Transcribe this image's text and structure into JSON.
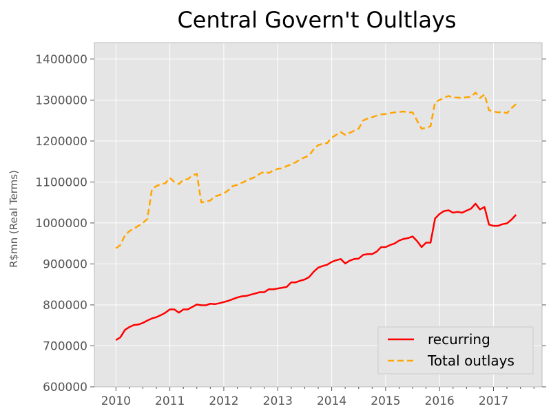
{
  "chart_data": {
    "type": "line",
    "title": "Central Govern't Oultlays",
    "xlabel": "",
    "ylabel": "R$mn (Real Terms)",
    "xlim": [
      2009.6,
      2017.9
    ],
    "ylim": [
      600000,
      1440000
    ],
    "x_ticks": [
      2010,
      2011,
      2012,
      2013,
      2014,
      2015,
      2016,
      2017
    ],
    "y_ticks": [
      600000,
      700000,
      800000,
      900000,
      1000000,
      1100000,
      1200000,
      1300000,
      1400000
    ],
    "grid": true,
    "legend_position": "lower-right",
    "colors": {
      "background": "#e5e5e5",
      "grid": "#ffffff",
      "recurring": "#ff0000",
      "total": "#ffa500"
    },
    "series": [
      {
        "name": "recurring",
        "style": "solid",
        "x": [
          2010.0,
          2010.083,
          2010.167,
          2010.25,
          2010.333,
          2010.417,
          2010.5,
          2010.583,
          2010.667,
          2010.75,
          2010.833,
          2010.917,
          2011.0,
          2011.083,
          2011.167,
          2011.25,
          2011.333,
          2011.417,
          2011.5,
          2011.583,
          2011.667,
          2011.75,
          2011.833,
          2011.917,
          2012.0,
          2012.083,
          2012.167,
          2012.25,
          2012.333,
          2012.417,
          2012.5,
          2012.583,
          2012.667,
          2012.75,
          2012.833,
          2012.917,
          2013.0,
          2013.083,
          2013.167,
          2013.25,
          2013.333,
          2013.417,
          2013.5,
          2013.583,
          2013.667,
          2013.75,
          2013.833,
          2013.917,
          2014.0,
          2014.083,
          2014.167,
          2014.25,
          2014.333,
          2014.417,
          2014.5,
          2014.583,
          2014.667,
          2014.75,
          2014.833,
          2014.917,
          2015.0,
          2015.083,
          2015.167,
          2015.25,
          2015.333,
          2015.417,
          2015.5,
          2015.583,
          2015.667,
          2015.75,
          2015.833,
          2015.917,
          2016.0,
          2016.083,
          2016.167,
          2016.25,
          2016.333,
          2016.417,
          2016.5,
          2016.583,
          2016.667,
          2016.75,
          2016.833,
          2016.917,
          2017.0,
          2017.083,
          2017.167,
          2017.25,
          2017.333,
          2017.417
        ],
        "values": [
          714000,
          721000,
          739000,
          746000,
          751000,
          752000,
          756000,
          762000,
          767000,
          770000,
          775000,
          781000,
          789000,
          789000,
          781000,
          789000,
          789000,
          795000,
          801000,
          799000,
          799000,
          803000,
          802000,
          804000,
          807000,
          810000,
          814000,
          818000,
          821000,
          822000,
          825000,
          828000,
          831000,
          831000,
          838000,
          838000,
          840000,
          842000,
          844000,
          855000,
          855000,
          859000,
          862000,
          868000,
          881000,
          891000,
          895000,
          898000,
          905000,
          909000,
          912000,
          901000,
          908000,
          912000,
          913000,
          922000,
          924000,
          924000,
          930000,
          941000,
          941000,
          946000,
          950000,
          957000,
          961000,
          963000,
          967000,
          956000,
          941000,
          952000,
          952000,
          1011000,
          1022000,
          1029000,
          1031000,
          1025000,
          1027000,
          1025000,
          1030000,
          1035000,
          1047000,
          1033000,
          1039000,
          996000,
          993000,
          993000,
          997000,
          999000,
          1008000,
          1020000
        ]
      },
      {
        "name": "Total outlays",
        "style": "dashed",
        "x": [
          2010.0,
          2010.083,
          2010.167,
          2010.25,
          2010.333,
          2010.417,
          2010.5,
          2010.583,
          2010.667,
          2010.75,
          2010.833,
          2010.917,
          2011.0,
          2011.083,
          2011.167,
          2011.25,
          2011.333,
          2011.417,
          2011.5,
          2011.583,
          2011.667,
          2011.75,
          2011.833,
          2011.917,
          2012.0,
          2012.083,
          2012.167,
          2012.25,
          2012.333,
          2012.417,
          2012.5,
          2012.583,
          2012.667,
          2012.75,
          2012.833,
          2012.917,
          2013.0,
          2013.083,
          2013.167,
          2013.25,
          2013.333,
          2013.417,
          2013.5,
          2013.583,
          2013.667,
          2013.75,
          2013.833,
          2013.917,
          2014.0,
          2014.083,
          2014.167,
          2014.25,
          2014.333,
          2014.417,
          2014.5,
          2014.583,
          2014.667,
          2014.75,
          2014.833,
          2014.917,
          2015.0,
          2015.083,
          2015.167,
          2015.25,
          2015.333,
          2015.417,
          2015.5,
          2015.583,
          2015.667,
          2015.75,
          2015.833,
          2015.917,
          2016.0,
          2016.083,
          2016.167,
          2016.25,
          2016.333,
          2016.417,
          2016.5,
          2016.583,
          2016.667,
          2016.75,
          2016.833,
          2016.917,
          2017.0,
          2017.083,
          2017.167,
          2017.25,
          2017.333,
          2017.417
        ],
        "values": [
          938000,
          946000,
          970000,
          980000,
          986000,
          993000,
          1000000,
          1010000,
          1083000,
          1090000,
          1095000,
          1097000,
          1110000,
          1100000,
          1095000,
          1105000,
          1107000,
          1116000,
          1120000,
          1050000,
          1052000,
          1055000,
          1065000,
          1068000,
          1072000,
          1080000,
          1090000,
          1093000,
          1098000,
          1103000,
          1108000,
          1112000,
          1120000,
          1125000,
          1122000,
          1128000,
          1132000,
          1133000,
          1139000,
          1143000,
          1148000,
          1155000,
          1160000,
          1165000,
          1180000,
          1190000,
          1193000,
          1195000,
          1208000,
          1215000,
          1222000,
          1215000,
          1220000,
          1225000,
          1230000,
          1250000,
          1255000,
          1258000,
          1262000,
          1265000,
          1266000,
          1268000,
          1270000,
          1271000,
          1272000,
          1270000,
          1270000,
          1250000,
          1230000,
          1232000,
          1236000,
          1295000,
          1300000,
          1306000,
          1310000,
          1306000,
          1306000,
          1305000,
          1307000,
          1308000,
          1318000,
          1305000,
          1314000,
          1275000,
          1272000,
          1270000,
          1271000,
          1268000,
          1280000,
          1290000
        ]
      }
    ]
  }
}
